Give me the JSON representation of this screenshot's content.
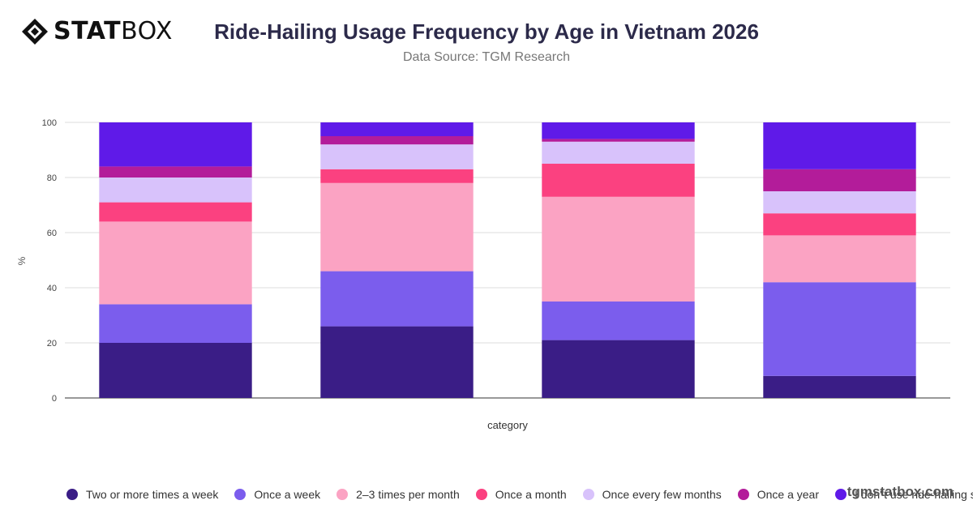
{
  "brand": {
    "strong": "STAT",
    "light": "BOX"
  },
  "watermark": "tgmstatbox.com",
  "chart_data": {
    "type": "bar",
    "stacked": true,
    "title": "Ride-Hailing Usage Frequency by Age in Vietnam 2026",
    "subtitle": "Data Source: TGM Research",
    "xlabel": "category",
    "ylabel": "%",
    "ylim": [
      0,
      100
    ],
    "yticks": [
      0,
      20,
      40,
      60,
      80,
      100
    ],
    "grid": true,
    "legend_position": "bottom",
    "categories": [
      "",
      "",
      "",
      ""
    ],
    "series": [
      {
        "name": "Two or more times a week",
        "color": "#3a1d86",
        "values": [
          20,
          26,
          21,
          8
        ]
      },
      {
        "name": "Once a week",
        "color": "#7b5ded",
        "values": [
          14,
          20,
          14,
          34
        ]
      },
      {
        "name": "2–3 times per month",
        "color": "#fba3c3",
        "values": [
          30,
          32,
          38,
          17
        ]
      },
      {
        "name": "Once a month",
        "color": "#fb4180",
        "values": [
          7,
          5,
          12,
          8
        ]
      },
      {
        "name": "Once every few months",
        "color": "#d8c2fb",
        "values": [
          9,
          9,
          8,
          8
        ]
      },
      {
        "name": "Once a year",
        "color": "#b31c9a",
        "values": [
          4,
          3,
          1,
          8
        ]
      },
      {
        "name": "I don\"t use ride-hailing services",
        "color": "#5f1ae8",
        "values": [
          16,
          5,
          6,
          17
        ]
      }
    ]
  }
}
